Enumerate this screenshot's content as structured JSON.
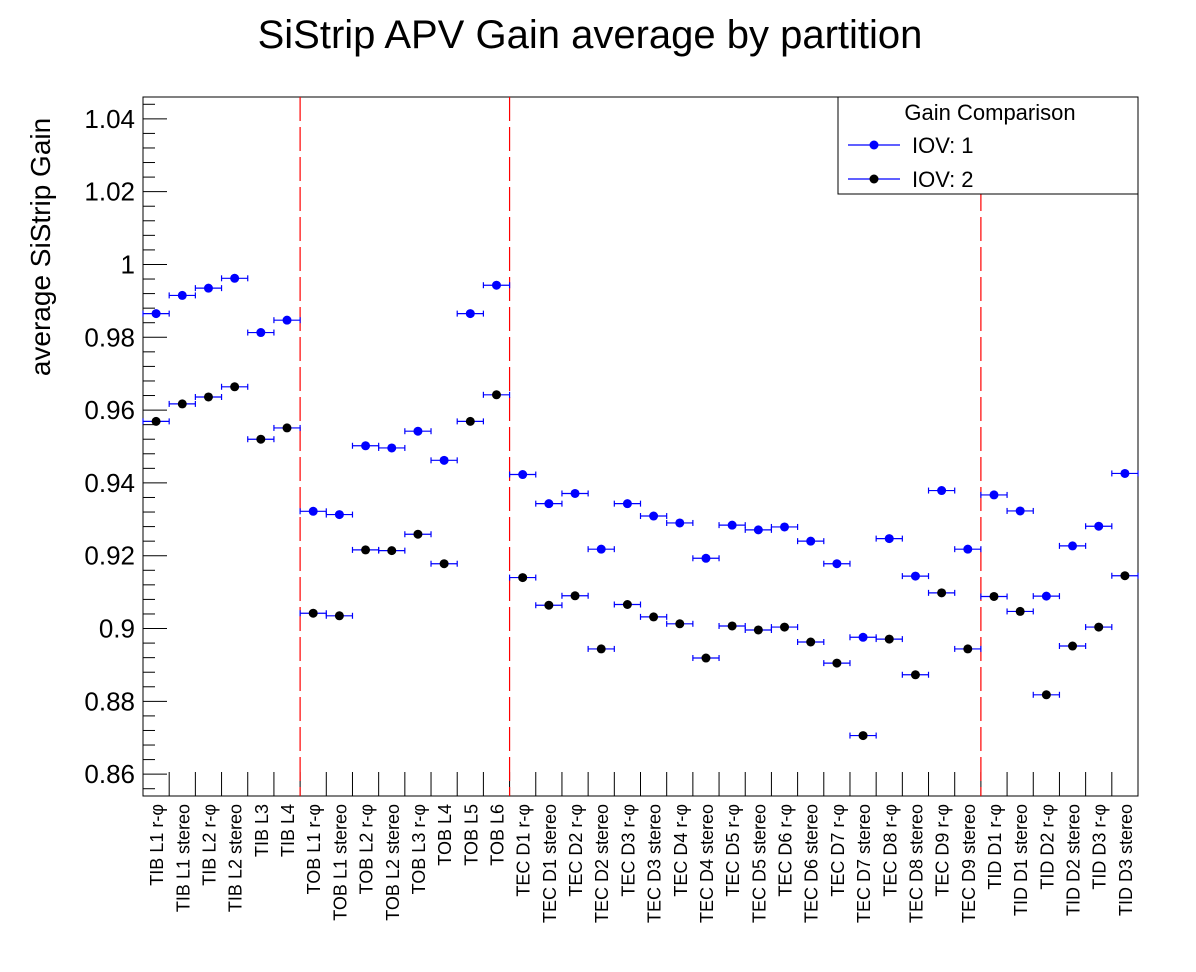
{
  "chart_data": {
    "type": "scatter",
    "title": "SiStrip APV Gain average by partition",
    "ylabel": "average SiStrip Gain",
    "xlabel": "",
    "ylim": [
      0.854,
      1.046
    ],
    "yticks": [
      0.86,
      0.88,
      0.9,
      0.92,
      0.94,
      0.96,
      0.98,
      1,
      1.02,
      1.04
    ],
    "ytick_labels": [
      "0.86",
      "0.88",
      "0.9",
      "0.92",
      "0.94",
      "0.96",
      "0.98",
      "1",
      "1.02",
      "1.04"
    ],
    "categories": [
      "TIB L1 r-φ",
      "TIB L1 stereo",
      "TIB L2 r-φ",
      "TIB L2 stereo",
      "TIB L3",
      "TIB L4",
      "TOB L1 r-φ",
      "TOB L1 stereo",
      "TOB L2 r-φ",
      "TOB L2 stereo",
      "TOB L3 r-φ",
      "TOB L4",
      "TOB L5",
      "TOB L6",
      "TEC D1 r-φ",
      "TEC D1 stereo",
      "TEC D2 r-φ",
      "TEC D2 stereo",
      "TEC D3 r-φ",
      "TEC D3 stereo",
      "TEC D4 r-φ",
      "TEC D4 stereo",
      "TEC D5 r-φ",
      "TEC D5 stereo",
      "TEC D6 r-φ",
      "TEC D6 stereo",
      "TEC D7 r-φ",
      "TEC D7 stereo",
      "TEC D8 r-φ",
      "TEC D8 stereo",
      "TEC D9 r-φ",
      "TEC D9 stereo",
      "TID D1 r-φ",
      "TID D1 stereo",
      "TID D2 r-φ",
      "TID D2 stereo",
      "TID D3 r-φ",
      "TID D3 stereo"
    ],
    "series": [
      {
        "name": "IOV: 1",
        "color": "#0000ff",
        "values": [
          0.9865,
          0.9915,
          0.9935,
          0.9962,
          0.9813,
          0.9847,
          0.9322,
          0.9313,
          0.9502,
          0.9496,
          0.9542,
          0.9462,
          0.9865,
          0.9943,
          0.9423,
          0.9343,
          0.9371,
          0.9218,
          0.9343,
          0.9309,
          0.929,
          0.9193,
          0.9284,
          0.9271,
          0.9279,
          0.924,
          0.9178,
          0.8976,
          0.9247,
          0.9144,
          0.9379,
          0.9218,
          0.9367,
          0.9323,
          0.9089,
          0.9227,
          0.9281,
          0.9426
        ]
      },
      {
        "name": "IOV: 2",
        "color": "#000000",
        "values": [
          0.9569,
          0.9617,
          0.9636,
          0.9664,
          0.952,
          0.9551,
          0.9042,
          0.9035,
          0.9216,
          0.9214,
          0.9259,
          0.9178,
          0.9569,
          0.9642,
          0.914,
          0.9064,
          0.909,
          0.8944,
          0.9066,
          0.9032,
          0.9013,
          0.8919,
          0.9007,
          0.8996,
          0.9004,
          0.8963,
          0.8905,
          0.8706,
          0.8971,
          0.8873,
          0.9098,
          0.8944,
          0.9088,
          0.9047,
          0.8818,
          0.8952,
          0.9004,
          0.9145
        ]
      }
    ],
    "partition_boundaries": [
      6,
      14,
      32
    ],
    "boundary_color": "#ff0000",
    "grid": false,
    "legend": {
      "title": "Gain Comparison",
      "position": "top-right"
    }
  }
}
